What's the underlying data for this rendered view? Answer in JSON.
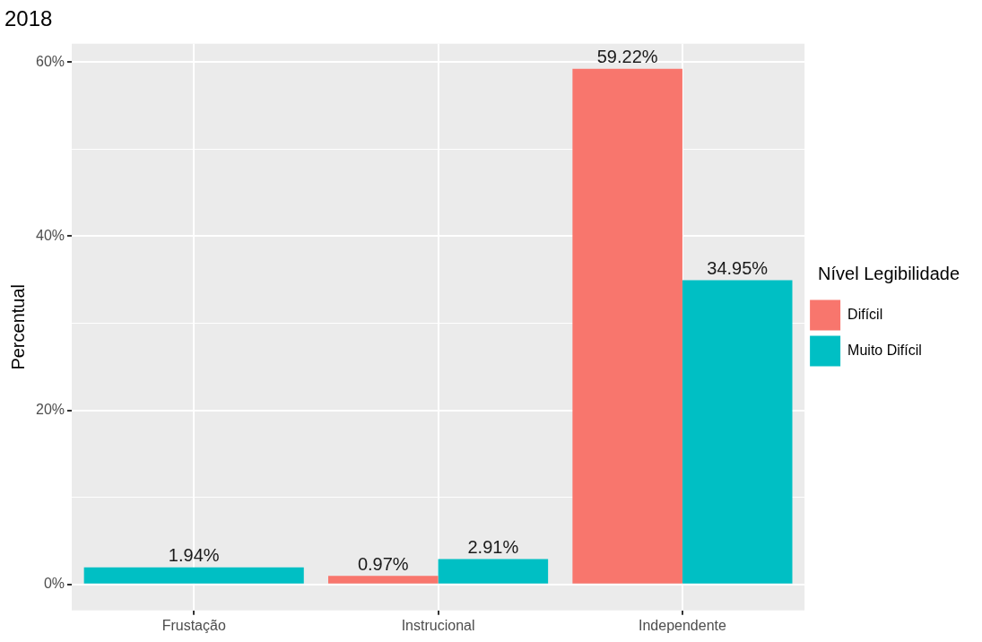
{
  "chart_data": {
    "type": "bar",
    "title": "2018",
    "ylabel": "Percentual",
    "legend_title": "Nível Legibilidade",
    "legend": "right",
    "grid": true,
    "categories": [
      "Frustação",
      "Instrucional",
      "Independente"
    ],
    "series": [
      {
        "name": "Difícil",
        "color": "#f8766d",
        "values": [
          null,
          0.97,
          59.22
        ],
        "value_labels": [
          null,
          "0.97%",
          "59.22%"
        ]
      },
      {
        "name": "Muito Difícil",
        "color": "#00bfc4",
        "values": [
          1.94,
          2.91,
          34.95
        ],
        "value_labels": [
          "1.94%",
          "2.91%",
          "34.95%"
        ]
      }
    ],
    "ylim": [
      -3,
      62.1
    ],
    "yticks": [
      {
        "value": 0,
        "label": "0%"
      },
      {
        "value": 10,
        "label": null
      },
      {
        "value": 20,
        "label": "20%"
      },
      {
        "value": 30,
        "label": null
      },
      {
        "value": 40,
        "label": "40%"
      },
      {
        "value": 50,
        "label": null
      },
      {
        "value": 60,
        "label": "60%"
      }
    ]
  }
}
